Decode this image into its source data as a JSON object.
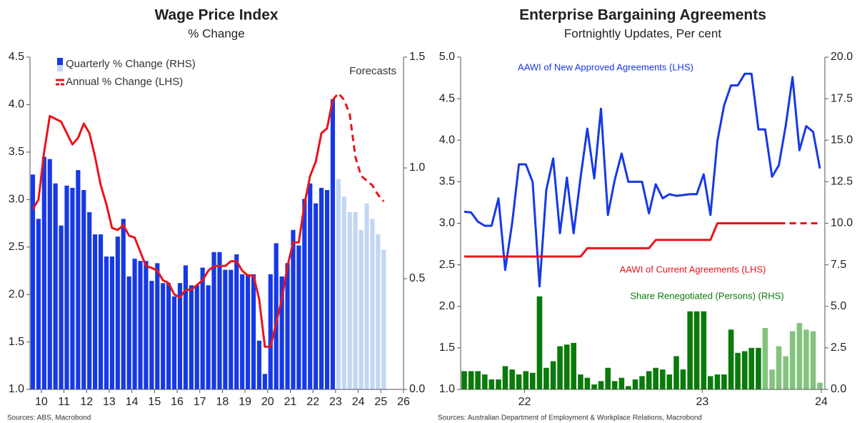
{
  "chart_data": [
    {
      "type": "combo",
      "title": "Wage Price Index",
      "subtitle": "% Change",
      "source": "Sources: ABS, Macrobond",
      "annotation": "Forecasts",
      "legend": "upper left",
      "xlim": [
        2009.5,
        2026
      ],
      "xticks": [
        {
          "value": 2010,
          "label": "10"
        },
        {
          "value": 2011,
          "label": "11"
        },
        {
          "value": 2012,
          "label": "12"
        },
        {
          "value": 2013,
          "label": "13"
        },
        {
          "value": 2014,
          "label": "14"
        },
        {
          "value": 2015,
          "label": "15"
        },
        {
          "value": 2016,
          "label": "16"
        },
        {
          "value": 2017,
          "label": "17"
        },
        {
          "value": 2018,
          "label": "18"
        },
        {
          "value": 2019,
          "label": "19"
        },
        {
          "value": 2020,
          "label": "20"
        },
        {
          "value": 2021,
          "label": "21"
        },
        {
          "value": 2022,
          "label": "22"
        },
        {
          "value": 2023,
          "label": "23"
        },
        {
          "value": 2024,
          "label": "24"
        },
        {
          "value": 2025,
          "label": "25"
        },
        {
          "value": 2026,
          "label": "26"
        }
      ],
      "ylim": [
        1,
        4.5
      ],
      "yticks": [
        {
          "value": 1,
          "label": "1.0"
        },
        1.5,
        {
          "value": 2,
          "label": "2.0"
        },
        2.5,
        {
          "value": 3,
          "label": "3.0"
        },
        3.5,
        {
          "value": 4,
          "label": "4.0"
        },
        4.5
      ],
      "y2lim": [
        0,
        1.5
      ],
      "y2ticks": [
        {
          "value": 0,
          "label": "0.0"
        },
        0.5,
        {
          "value": 1,
          "label": "1.0"
        },
        1.5
      ],
      "series": [
        {
          "name": "Quarterly % Change (RHS)",
          "type": "bar",
          "axis": "y2",
          "color": "#1639e6",
          "x": [
            2009.625,
            2009.875,
            2010.125,
            2010.375,
            2010.625,
            2010.875,
            2011.125,
            2011.375,
            2011.625,
            2011.875,
            2012.125,
            2012.375,
            2012.625,
            2012.875,
            2013.125,
            2013.375,
            2013.625,
            2013.875,
            2014.125,
            2014.375,
            2014.625,
            2014.875,
            2015.125,
            2015.375,
            2015.625,
            2015.875,
            2016.125,
            2016.375,
            2016.625,
            2016.875,
            2017.125,
            2017.375,
            2017.625,
            2017.875,
            2018.125,
            2018.375,
            2018.625,
            2018.875,
            2019.125,
            2019.375,
            2019.625,
            2019.875,
            2020.125,
            2020.375,
            2020.625,
            2020.875,
            2021.125,
            2021.375,
            2021.625,
            2021.875,
            2022.125,
            2022.375,
            2022.625,
            2022.875
          ],
          "values": [
            0.97,
            0.77,
            1.05,
            1.04,
            0.93,
            0.74,
            0.92,
            0.91,
            0.99,
            0.9,
            0.8,
            0.7,
            0.7,
            0.6,
            0.6,
            0.69,
            0.77,
            0.51,
            0.59,
            0.58,
            0.58,
            0.49,
            0.57,
            0.48,
            0.48,
            0.42,
            0.48,
            0.56,
            0.47,
            0.47,
            0.55,
            0.47,
            0.62,
            0.62,
            0.54,
            0.54,
            0.61,
            0.52,
            0.52,
            0.52,
            0.22,
            0.07,
            0.52,
            0.66,
            0.51,
            0.57,
            0.72,
            0.65,
            0.86,
            0.93,
            0.84,
            0.91,
            0.9,
            1.31
          ]
        },
        {
          "type": "bar",
          "axis": "y2",
          "color": "#c3d6f2",
          "x": [
            2023.125,
            2023.375,
            2023.625,
            2023.875,
            2024.125,
            2024.375,
            2024.625,
            2024.875,
            2025.125
          ],
          "values": [
            0.95,
            0.87,
            0.8,
            0.8,
            0.72,
            0.84,
            0.77,
            0.7,
            0.63
          ]
        },
        {
          "name": "Annual % Change (LHS)",
          "type": "line",
          "axis": "y",
          "color": "#e8141b",
          "x": [
            2009.625,
            2009.875,
            2010.125,
            2010.375,
            2010.625,
            2010.875,
            2011.125,
            2011.375,
            2011.625,
            2011.875,
            2012.125,
            2012.375,
            2012.625,
            2012.875,
            2013.125,
            2013.375,
            2013.625,
            2013.875,
            2014.125,
            2014.375,
            2014.625,
            2014.875,
            2015.125,
            2015.375,
            2015.625,
            2015.875,
            2016.125,
            2016.375,
            2016.625,
            2016.875,
            2017.125,
            2017.375,
            2017.625,
            2017.875,
            2018.125,
            2018.375,
            2018.625,
            2018.875,
            2019.125,
            2019.375,
            2019.625,
            2019.875,
            2020.125,
            2020.375,
            2020.625,
            2020.875,
            2021.125,
            2021.375,
            2021.625,
            2021.875,
            2022.125,
            2022.375,
            2022.625,
            2022.875
          ],
          "values": [
            2.9,
            3.0,
            3.5,
            3.88,
            3.85,
            3.82,
            3.7,
            3.58,
            3.65,
            3.8,
            3.7,
            3.45,
            3.15,
            2.95,
            2.7,
            2.68,
            2.73,
            2.62,
            2.6,
            2.45,
            2.3,
            2.28,
            2.25,
            2.15,
            2.12,
            2.0,
            1.97,
            2.05,
            2.05,
            2.1,
            2.15,
            2.25,
            2.3,
            2.3,
            2.3,
            2.35,
            2.35,
            2.25,
            2.2,
            2.2,
            1.95,
            1.45,
            1.45,
            1.7,
            1.95,
            2.3,
            2.55,
            2.55,
            2.95,
            3.25,
            3.4,
            3.7,
            3.75,
            4.05
          ]
        },
        {
          "type": "line",
          "axis": "y",
          "color": "#e8141b",
          "dashed": true,
          "x": [
            2022.875,
            2023.125,
            2023.375,
            2023.625,
            2023.875,
            2024.125,
            2024.375,
            2024.625,
            2024.875,
            2025.125
          ],
          "values": [
            4.05,
            4.12,
            4.05,
            3.9,
            3.45,
            3.25,
            3.2,
            3.15,
            3.05,
            2.98
          ]
        }
      ]
    },
    {
      "type": "combo",
      "title": "Enterprise Bargaining Agreements",
      "subtitle": "Fortnightly Updates, Per cent",
      "source": "Sources: Australian Department of Employment & Workplace Relations, Macrobond",
      "xlim": [
        2022.14,
        2024.19
      ],
      "xticks": [
        {
          "value": 2022.5,
          "label": "22"
        },
        {
          "value": 2023.5,
          "label": "23"
        },
        {
          "value": 2024.17,
          "label": "24"
        }
      ],
      "ylim": [
        1,
        5
      ],
      "yticks": [
        {
          "value": 1,
          "label": "1.0"
        },
        1.5,
        {
          "value": 2,
          "label": "2.0"
        },
        2.5,
        {
          "value": 3,
          "label": "3.0"
        },
        3.5,
        {
          "value": 4,
          "label": "4.0"
        },
        4.5,
        {
          "value": 5,
          "label": "5.0"
        }
      ],
      "y2lim": [
        0,
        20
      ],
      "y2ticks": [
        {
          "value": 0,
          "label": "0.0"
        },
        2.5,
        {
          "value": 5,
          "label": "5.0"
        },
        7.5,
        {
          "value": 10,
          "label": "10.0"
        },
        12.5,
        {
          "value": 15,
          "label": "15.0"
        },
        17.5,
        {
          "value": 20,
          "label": "20.0"
        }
      ],
      "series": [
        {
          "name": "Share Renegotiated (Persons) (RHS)",
          "type": "bar",
          "axis": "y2",
          "color": "#0a7a0a",
          "x": [
            2022.16,
            2022.199,
            2022.237,
            2022.276,
            2022.314,
            2022.353,
            2022.391,
            2022.43,
            2022.468,
            2022.507,
            2022.545,
            2022.584,
            2022.622,
            2022.661,
            2022.699,
            2022.738,
            2022.776,
            2022.815,
            2022.853,
            2022.892,
            2022.93,
            2022.969,
            2023.007,
            2023.046,
            2023.084,
            2023.123,
            2023.161,
            2023.2,
            2023.238,
            2023.277,
            2023.315,
            2023.354,
            2023.392,
            2023.431,
            2023.469,
            2023.508,
            2023.546,
            2023.585,
            2023.623,
            2023.662,
            2023.7,
            2023.739,
            2023.777,
            2023.816
          ],
          "values": [
            1.1,
            1.1,
            1.1,
            0.9,
            0.6,
            0.6,
            1.4,
            1.2,
            0.9,
            1.1,
            1.0,
            5.6,
            1.3,
            1.7,
            2.6,
            2.7,
            2.8,
            0.9,
            0.7,
            0.3,
            0.5,
            1.3,
            0.5,
            0.7,
            0.2,
            0.6,
            0.8,
            1.1,
            1.3,
            1.2,
            0.9,
            2.0,
            1.2,
            4.7,
            4.7,
            4.7,
            0.8,
            0.9,
            0.9,
            3.6,
            2.2,
            2.3,
            2.5,
            2.5
          ]
        },
        {
          "type": "bar",
          "axis": "y2",
          "color": "#84c37e",
          "x": [
            2023.854,
            2023.893,
            2023.931,
            2023.97,
            2024.008,
            2024.047,
            2024.085,
            2024.124,
            2024.162
          ],
          "values": [
            3.7,
            1.2,
            2.6,
            2.0,
            3.5,
            4.0,
            3.6,
            3.5,
            0.4
          ]
        },
        {
          "name": "AAWI of New Approved Agreements (LHS)",
          "type": "line",
          "axis": "y",
          "color": "#1639e6",
          "x": [
            2022.16,
            2022.199,
            2022.237,
            2022.276,
            2022.314,
            2022.353,
            2022.391,
            2022.43,
            2022.468,
            2022.507,
            2022.545,
            2022.584,
            2022.622,
            2022.661,
            2022.699,
            2022.738,
            2022.776,
            2022.815,
            2022.853,
            2022.892,
            2022.93,
            2022.969,
            2023.007,
            2023.046,
            2023.084,
            2023.123,
            2023.161,
            2023.2,
            2023.238,
            2023.277,
            2023.315,
            2023.354,
            2023.392,
            2023.431,
            2023.469,
            2023.508,
            2023.546,
            2023.585,
            2023.623,
            2023.662,
            2023.7,
            2023.739,
            2023.777,
            2023.816,
            2023.854,
            2023.893,
            2023.931,
            2023.97,
            2024.008,
            2024.047,
            2024.085,
            2024.124,
            2024.162
          ],
          "values": [
            3.14,
            3.13,
            3.02,
            2.97,
            2.97,
            3.3,
            2.44,
            3.0,
            3.71,
            3.71,
            3.5,
            2.24,
            3.4,
            3.78,
            2.88,
            3.55,
            2.88,
            3.55,
            4.14,
            3.54,
            4.38,
            3.1,
            3.52,
            3.84,
            3.5,
            3.5,
            3.5,
            3.12,
            3.47,
            3.3,
            3.35,
            3.33,
            3.34,
            3.35,
            3.35,
            3.59,
            3.1,
            3.99,
            4.42,
            4.66,
            4.66,
            4.8,
            4.8,
            4.13,
            4.13,
            3.56,
            3.7,
            4.18,
            4.76,
            3.88,
            4.17,
            4.1,
            3.66
          ]
        },
        {
          "name": "AAWI of Current Agreements (LHS)",
          "type": "line",
          "axis": "y",
          "color": "#e8141b",
          "x": [
            2022.16,
            2022.199,
            2022.237,
            2022.276,
            2022.314,
            2022.353,
            2022.391,
            2022.43,
            2022.468,
            2022.507,
            2022.545,
            2022.584,
            2022.622,
            2022.661,
            2022.699,
            2022.738,
            2022.776,
            2022.815,
            2022.853,
            2022.892,
            2022.93,
            2022.969,
            2023.007,
            2023.046,
            2023.084,
            2023.123,
            2023.161,
            2023.2,
            2023.238,
            2023.277,
            2023.315,
            2023.354,
            2023.392,
            2023.431,
            2023.469,
            2023.508,
            2023.546,
            2023.585,
            2023.623,
            2023.662,
            2023.7,
            2023.739,
            2023.777,
            2023.816,
            2023.854,
            2023.893,
            2023.931
          ],
          "values": [
            2.6,
            2.6,
            2.6,
            2.6,
            2.6,
            2.6,
            2.6,
            2.6,
            2.6,
            2.6,
            2.6,
            2.6,
            2.6,
            2.6,
            2.6,
            2.6,
            2.6,
            2.6,
            2.7,
            2.7,
            2.7,
            2.7,
            2.7,
            2.7,
            2.7,
            2.7,
            2.7,
            2.7,
            2.8,
            2.8,
            2.8,
            2.8,
            2.8,
            2.8,
            2.8,
            2.8,
            2.8,
            3.0,
            3.0,
            3.0,
            3.0,
            3.0,
            3.0,
            3.0,
            3.0,
            3.0,
            3.0
          ]
        },
        {
          "type": "line",
          "axis": "y",
          "color": "#e8141b",
          "dashed": true,
          "x": [
            2023.931,
            2023.97,
            2024.008,
            2024.047,
            2024.085,
            2024.124,
            2024.162
          ],
          "values": [
            3.0,
            3.0,
            3.0,
            3.0,
            3.0,
            3.0,
            3.0
          ]
        }
      ]
    }
  ]
}
